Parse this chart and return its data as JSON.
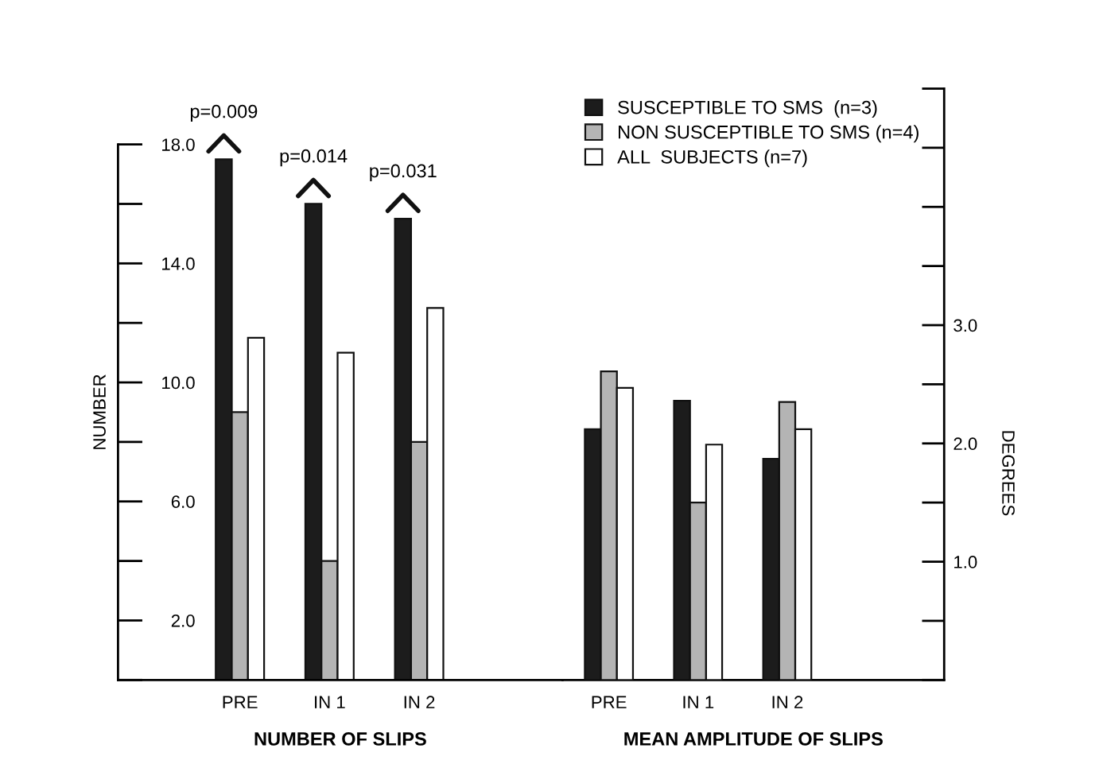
{
  "chart_data": [
    {
      "type": "bar",
      "ylabel": "NUMBER",
      "xlabel": "NUMBER OF SLIPS",
      "categories": [
        "PRE",
        "IN 1",
        "IN 2"
      ],
      "series": [
        {
          "color": "#1c1c1c",
          "values": [
            17.5,
            16.0,
            15.5
          ]
        },
        {
          "color": "#b4b4b4",
          "values": [
            9.0,
            4.0,
            8.0
          ]
        },
        {
          "color": "#ffffff",
          "values": [
            11.5,
            11.0,
            12.5
          ]
        }
      ],
      "ylim": [
        0,
        18
      ],
      "yticks": [
        {
          "value": 2,
          "label": "2.0"
        },
        {
          "value": 6,
          "label": "6.0"
        },
        {
          "value": 10,
          "label": "10.0"
        },
        {
          "value": 14,
          "label": "14.0"
        },
        {
          "value": 18,
          "label": "18.0"
        }
      ],
      "annotations": [
        "p=0.009",
        "p=0.014",
        "p=0.031"
      ],
      "legend": false
    },
    {
      "type": "bar",
      "y2label": "DEGREES",
      "xlabel": "MEAN AMPLITUDE OF SLIPS",
      "categories": [
        "PRE",
        "IN 1",
        "IN 2"
      ],
      "series": [
        {
          "name": "SUSCEPTIBLE TO SMS  (n=3)",
          "color": "#1c1c1c",
          "axis": "y2",
          "values": [
            2.12,
            2.36,
            1.87
          ]
        },
        {
          "name": "NON SUSCEPTIBLE TO SMS (n=4)",
          "color": "#b4b4b4",
          "axis": "y2",
          "values": [
            2.61,
            1.5,
            2.35
          ]
        },
        {
          "name": "ALL  SUBJECTS (n=7)",
          "color": "#ffffff",
          "axis": "y2",
          "values": [
            2.47,
            1.99,
            2.12
          ]
        }
      ],
      "y2lim": [
        0,
        5.0
      ],
      "y2ticks": [
        {
          "value": 1.0,
          "label": "1.0"
        },
        {
          "value": 2.0,
          "label": "2.0"
        },
        {
          "value": 3.0,
          "label": "3.0"
        }
      ],
      "legend": "top right"
    }
  ]
}
